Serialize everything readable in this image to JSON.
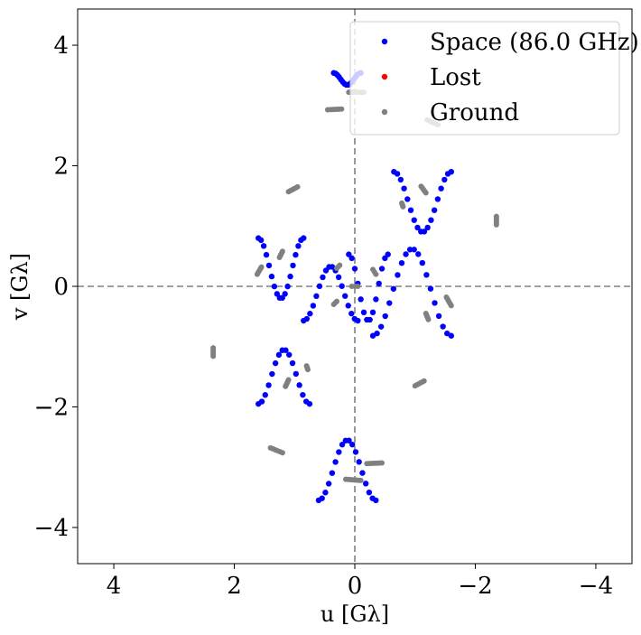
{
  "chart_data": {
    "type": "scatter",
    "xlabel": "u [Gλ]",
    "ylabel": "v [Gλ]",
    "xlim": [
      4.6,
      -4.6
    ],
    "ylim": [
      -4.6,
      4.6
    ],
    "x_ticks": [
      4,
      2,
      0,
      -2,
      -4
    ],
    "y_ticks": [
      -4,
      -2,
      0,
      2,
      4
    ],
    "x_tick_labels": [
      "4",
      "2",
      "0",
      "−2",
      "−4"
    ],
    "y_tick_labels": [
      "−4",
      "−2",
      "0",
      "2",
      "4"
    ],
    "zero_lines": true,
    "grid": false,
    "legend_position": "top-right",
    "colors": {
      "space": "#0000ff",
      "lost": "#ff0000",
      "ground": "#808080",
      "zero_line": "#808080"
    },
    "series": [
      {
        "name": "Space (86.0 GHz)",
        "color": "#0000ff",
        "tracks": [
          {
            "u": [
              0.35,
              -0.1
            ],
            "v_center": 3.44,
            "v_amp": 0.1,
            "phase": 0.0,
            "n": 16
          },
          {
            "u": [
              -0.65,
              -1.6
            ],
            "v_center": 1.4,
            "v_amp": 0.5,
            "phase": 0.0,
            "n": 18
          },
          {
            "u": [
              1.6,
              0.85
            ],
            "v_center": 0.3,
            "v_amp": 0.5,
            "phase": 0.0,
            "n": 18
          },
          {
            "u": [
              0.85,
              -0.05
            ],
            "v_center": -0.12,
            "v_amp": 0.45,
            "phase": 3.14,
            "n": 18
          },
          {
            "u": [
              0.1,
              -0.55
            ],
            "v_center": -0.02,
            "v_amp": 0.55,
            "phase": 0.0,
            "n": 14
          },
          {
            "u": [
              -0.3,
              -1.6
            ],
            "v_center": -0.1,
            "v_amp": 0.72,
            "phase": 3.14,
            "n": 20
          },
          {
            "u": [
              0.6,
              -0.35
            ],
            "v_center": -3.05,
            "v_amp": 0.5,
            "phase": 3.14,
            "n": 18
          },
          {
            "u": [
              1.6,
              0.75
            ],
            "v_center": -1.5,
            "v_amp": 0.45,
            "phase": 3.14,
            "n": 16
          }
        ]
      },
      {
        "name": "Lost",
        "color": "#ff0000",
        "tracks": []
      },
      {
        "name": "Ground",
        "color": "#808080",
        "tracks": [
          {
            "u": [
              0.1,
              -0.15
            ],
            "v": [
              3.22,
              3.22
            ],
            "n": 8
          },
          {
            "u": [
              0.45,
              0.22
            ],
            "v": [
              2.93,
              2.94
            ],
            "n": 7
          },
          {
            "u": [
              -1.2,
              -1.38
            ],
            "v": [
              2.76,
              2.68
            ],
            "n": 6
          },
          {
            "u": [
              -1.1,
              -1.18
            ],
            "v": [
              1.66,
              1.55
            ],
            "n": 6
          },
          {
            "u": [
              1.1,
              0.95
            ],
            "v": [
              1.57,
              1.65
            ],
            "n": 6
          },
          {
            "u": [
              -2.35,
              -2.35
            ],
            "v": [
              1.02,
              1.16
            ],
            "n": 6
          },
          {
            "u": [
              1.62,
              1.55
            ],
            "v": [
              0.2,
              0.32
            ],
            "n": 6
          },
          {
            "u": [
              1.25,
              1.2
            ],
            "v": [
              0.48,
              0.58
            ],
            "n": 5
          },
          {
            "u": [
              -0.8,
              -0.78
            ],
            "v": [
              1.32,
              1.38
            ],
            "n": 4
          },
          {
            "u": [
              -1.6,
              -1.52
            ],
            "v": [
              -0.32,
              -0.18
            ],
            "n": 6
          },
          {
            "u": [
              -1.22,
              -1.18
            ],
            "v": [
              -0.55,
              -0.45
            ],
            "n": 5
          },
          {
            "u": [
              0.25,
              0.3
            ],
            "v": [
              0.35,
              0.3
            ],
            "n": 3
          },
          {
            "u": [
              -0.3,
              -0.35
            ],
            "v": [
              0.28,
              0.2
            ],
            "n": 3
          },
          {
            "u": [
              -0.05,
              0.05
            ],
            "v": [
              0.0,
              0.0
            ],
            "n": 3
          },
          {
            "u": [
              0.35,
              0.3
            ],
            "v": [
              -0.3,
              -0.25
            ],
            "n": 3
          },
          {
            "u": [
              2.35,
              2.35
            ],
            "v": [
              -1.02,
              -1.16
            ],
            "n": 6
          },
          {
            "u": [
              1.1,
              1.15
            ],
            "v": [
              -1.55,
              -1.66
            ],
            "n": 6
          },
          {
            "u": [
              0.8,
              0.78
            ],
            "v": [
              -1.32,
              -1.38
            ],
            "n": 4
          },
          {
            "u": [
              -1.0,
              -1.15
            ],
            "v": [
              -1.65,
              -1.57
            ],
            "n": 6
          },
          {
            "u": [
              1.4,
              1.2
            ],
            "v": [
              -2.68,
              -2.76
            ],
            "n": 6
          },
          {
            "u": [
              0.15,
              -0.1
            ],
            "v": [
              -3.2,
              -3.22
            ],
            "n": 8
          },
          {
            "u": [
              -0.2,
              -0.45
            ],
            "v": [
              -2.94,
              -2.93
            ],
            "n": 7
          }
        ]
      }
    ]
  }
}
